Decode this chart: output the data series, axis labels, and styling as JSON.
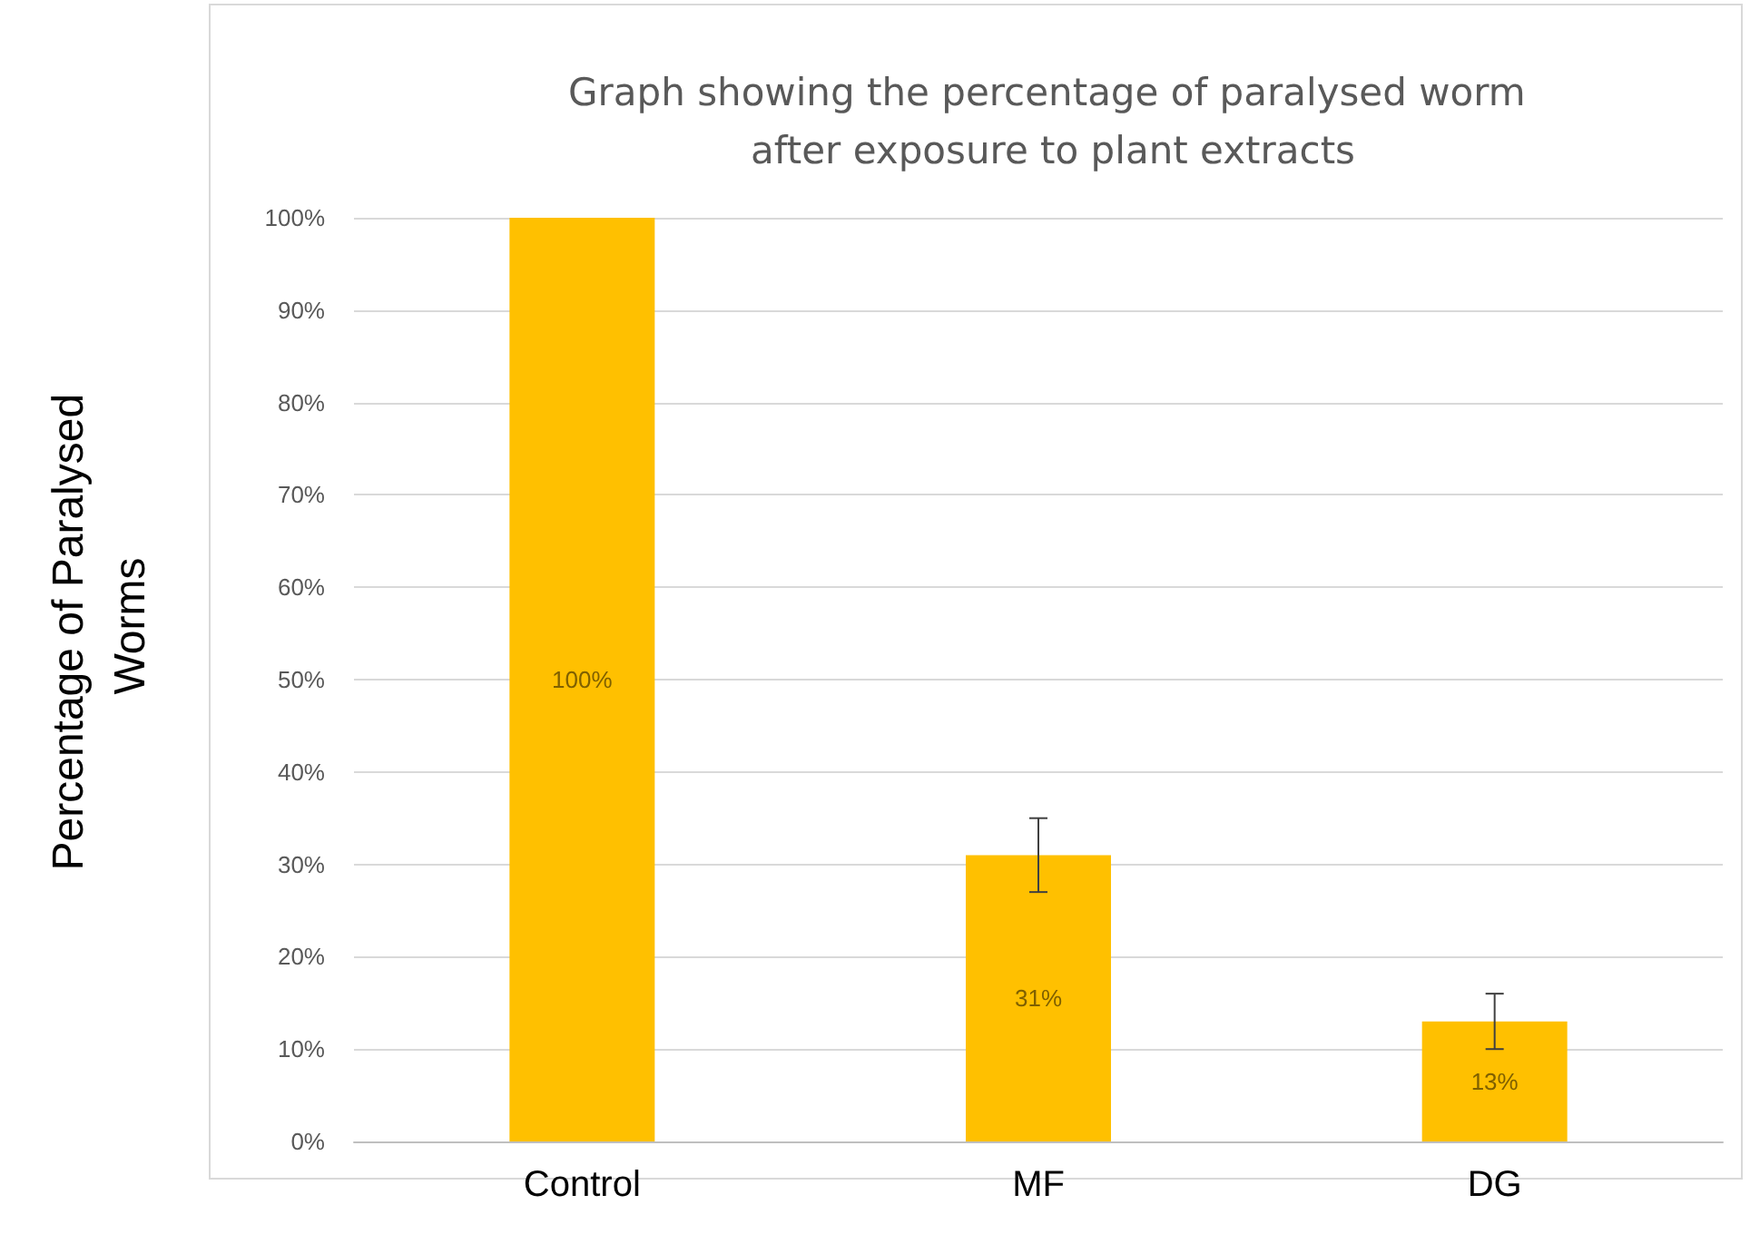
{
  "chart_data": {
    "type": "bar",
    "title": "Graph showing the percentage of paralysed worm after exposure to plant extracts",
    "ylabel": "Percentage of Paralysed Worms",
    "categories": [
      "Control",
      "MF",
      "DG"
    ],
    "values": [
      100,
      31,
      13
    ],
    "color": "#ffc000",
    "errors": [
      null,
      4,
      3
    ],
    "value_labels": [
      "100%",
      "31%",
      "13%"
    ],
    "ylim": [
      0,
      100
    ],
    "yticks": [
      {
        "value": 0,
        "label": "0%"
      },
      {
        "value": 10,
        "label": "10%"
      },
      {
        "value": 20,
        "label": "20%"
      },
      {
        "value": 30,
        "label": "30%"
      },
      {
        "value": 40,
        "label": "40%"
      },
      {
        "value": 50,
        "label": "50%"
      },
      {
        "value": 60,
        "label": "60%"
      },
      {
        "value": 70,
        "label": "70%"
      },
      {
        "value": 80,
        "label": "80%"
      },
      {
        "value": 90,
        "label": "90%"
      },
      {
        "value": 100,
        "label": "100%"
      }
    ],
    "grid": "y"
  }
}
